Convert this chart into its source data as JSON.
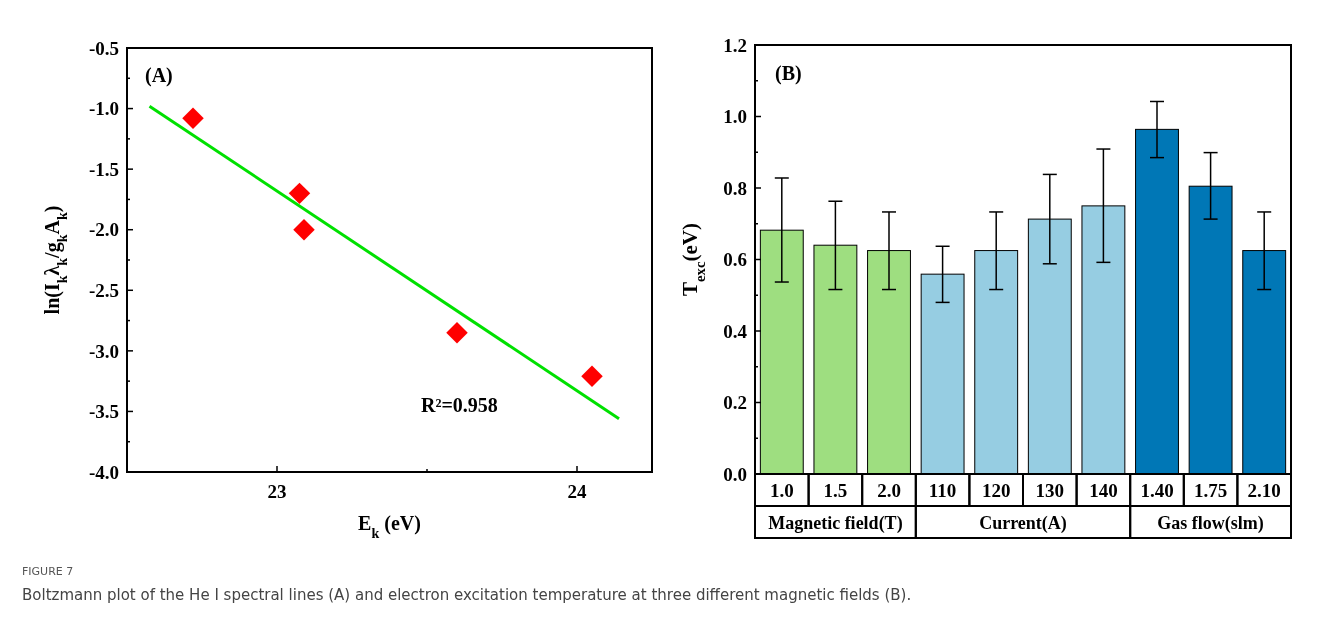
{
  "chart_data": [
    {
      "type": "scatter",
      "title": "(A)",
      "xlabel": "E$_{k}$ (eV)",
      "ylabel": "ln(I$_{k}$λ$_{k}$/g$_{k}$A$_{k}$)",
      "grid": false,
      "xlim": [
        22.5,
        24.25
      ],
      "xticks": [
        23,
        {
          "value": 23.5,
          "label": null
        },
        24
      ],
      "ylim": [
        -4,
        -0.5
      ],
      "yticks": [
        {
          "value": -4,
          "label": "-4.0"
        },
        {
          "value": -3.75,
          "label": null
        },
        {
          "value": -3.5,
          "label": "-3.5"
        },
        {
          "value": -3.25,
          "label": null
        },
        {
          "value": -3,
          "label": "-3.0"
        },
        {
          "value": -2.75,
          "label": null
        },
        {
          "value": -2.5,
          "label": "-2.5"
        },
        {
          "value": -2.25,
          "label": null
        },
        {
          "value": -2,
          "label": "-2.0"
        },
        {
          "value": -1.75,
          "label": null
        },
        {
          "value": -1.5,
          "label": "-1.5"
        },
        {
          "value": -1.25,
          "label": null
        },
        {
          "value": -1,
          "label": "-1.0"
        },
        {
          "value": -0.75,
          "label": null
        },
        {
          "value": -0.5,
          "label": "-0.5"
        }
      ],
      "series": [
        {
          "type": "scatter",
          "marker": "diamond",
          "color": "#ff0000",
          "x": [
            22.72,
            23.075,
            23.09,
            23.6,
            24.05
          ],
          "values": [
            -1.08,
            -1.7,
            -2.0,
            -2.85,
            -3.21
          ]
        },
        {
          "type": "line",
          "color": "#00e000",
          "line_style": "solid",
          "x": [
            22.575,
            24.14
          ],
          "values": [
            -0.98,
            -3.56
          ]
        }
      ],
      "annotations": [
        "R²=0.958"
      ]
    },
    {
      "type": "bar",
      "title": "(B)",
      "ylabel": "T$_{exc}$(eV)",
      "grid": false,
      "legend": "bottom",
      "categories": [
        "1.0",
        "1.5",
        "2.0",
        "110",
        "120",
        "130",
        "140",
        "1.40",
        "1.75",
        "2.10"
      ],
      "ylim": [
        0,
        1.2
      ],
      "yticks": [
        {
          "value": 0,
          "label": "0.0"
        },
        {
          "value": 0.1,
          "label": null
        },
        {
          "value": 0.2,
          "label": "0.2"
        },
        {
          "value": 0.3,
          "label": null
        },
        {
          "value": 0.4,
          "label": "0.4"
        },
        {
          "value": 0.5,
          "label": null
        },
        {
          "value": 0.6,
          "label": "0.6"
        },
        {
          "value": 0.7,
          "label": null
        },
        {
          "value": 0.8,
          "label": "0.8"
        },
        {
          "value": 0.9,
          "label": null
        },
        {
          "value": 1,
          "label": "1.0"
        },
        {
          "value": 1.1,
          "label": null
        },
        {
          "value": 1.2,
          "label": "1.2"
        }
      ],
      "series": [
        {
          "name": "Magnetic field(T)",
          "color": "#9ede80",
          "values": [
            0.682,
            0.64,
            0.625,
            null,
            null,
            null,
            null,
            null,
            null,
            null
          ],
          "errors": [
            [
              0.537,
              0.828
            ],
            [
              0.516,
              0.763
            ],
            [
              0.516,
              0.733
            ],
            null,
            null,
            null,
            null,
            null,
            null,
            null
          ]
        },
        {
          "name": "Current(A)",
          "color": "#96cde2",
          "values": [
            null,
            null,
            null,
            0.559,
            0.625,
            0.713,
            0.75,
            null,
            null,
            null
          ],
          "errors": [
            null,
            null,
            null,
            [
              0.48,
              0.637
            ],
            [
              0.516,
              0.733
            ],
            [
              0.588,
              0.838
            ],
            [
              0.592,
              0.909
            ],
            null,
            null,
            null
          ]
        },
        {
          "name": "Gas flow(slm)",
          "color": "#0077b6",
          "values": [
            null,
            null,
            null,
            null,
            null,
            null,
            null,
            0.964,
            0.805,
            0.625
          ],
          "errors": [
            null,
            null,
            null,
            null,
            null,
            null,
            null,
            [
              0.885,
              1.042
            ],
            [
              0.713,
              0.899
            ],
            [
              0.516,
              0.733
            ]
          ]
        }
      ]
    },
    {
      "type": "other",
      "title": "FIGURE 7",
      "annotations": [
        "Boltzmann plot of the He I spectral lines (A) and electron excitation temperature at three different magnetic fields (B)."
      ]
    }
  ]
}
